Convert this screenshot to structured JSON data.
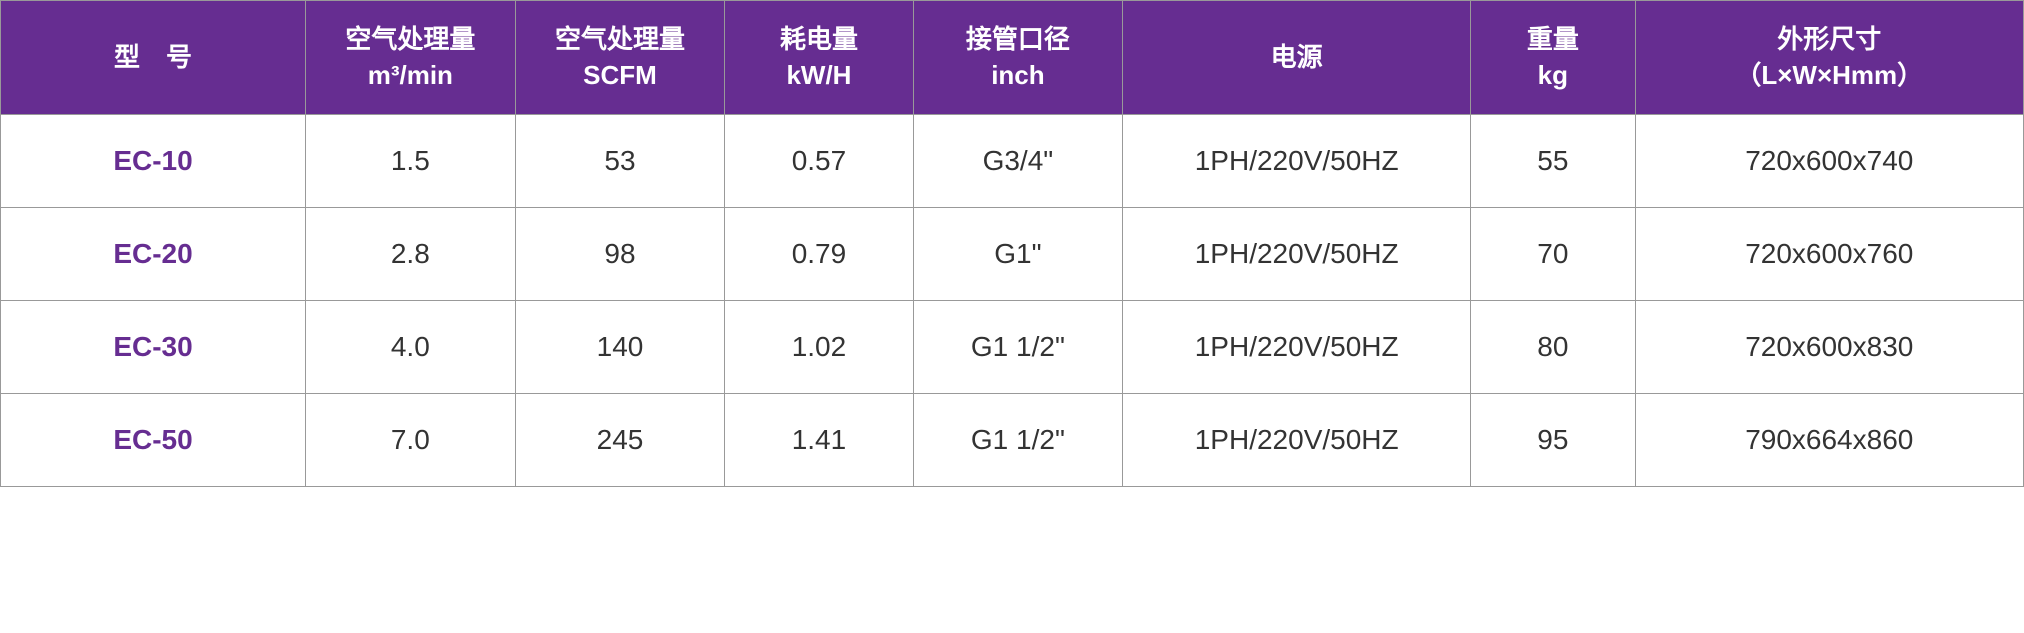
{
  "table": {
    "header_bg": "#662d91",
    "header_fg": "#ffffff",
    "border_color": "#999999",
    "cell_bg": "#ffffff",
    "cell_fg": "#333333",
    "model_fg": "#662d91",
    "header_fontsize": 26,
    "cell_fontsize": 28,
    "columns": [
      {
        "key": "model",
        "label_line1": "型　号",
        "label_line2": "",
        "width_pct": 12.8
      },
      {
        "key": "air_m3",
        "label_line1": "空气处理量",
        "label_line2": "m³/min",
        "width_pct": 8.8
      },
      {
        "key": "air_scfm",
        "label_line1": "空气处理量",
        "label_line2": "SCFM",
        "width_pct": 8.8
      },
      {
        "key": "power_kwh",
        "label_line1": "耗电量",
        "label_line2": "kW/H",
        "width_pct": 7.9
      },
      {
        "key": "pipe",
        "label_line1": "接管口径",
        "label_line2": "inch",
        "width_pct": 8.8
      },
      {
        "key": "elec",
        "label_line1": "电源",
        "label_line2": "",
        "width_pct": 14.6
      },
      {
        "key": "weight",
        "label_line1": "重量",
        "label_line2": "kg",
        "width_pct": 6.9
      },
      {
        "key": "dim",
        "label_line1": "外形尺寸",
        "label_line2": "（L×W×Hmm）",
        "width_pct": 16.3
      }
    ],
    "rows": [
      {
        "model": "EC-10",
        "air_m3": "1.5",
        "air_scfm": "53",
        "power_kwh": "0.57",
        "pipe": "G3/4\"",
        "elec": "1PH/220V/50HZ",
        "weight": "55",
        "dim": "720x600x740"
      },
      {
        "model": "EC-20",
        "air_m3": "2.8",
        "air_scfm": "98",
        "power_kwh": "0.79",
        "pipe": "G1\"",
        "elec": "1PH/220V/50HZ",
        "weight": "70",
        "dim": "720x600x760"
      },
      {
        "model": "EC-30",
        "air_m3": "4.0",
        "air_scfm": "140",
        "power_kwh": "1.02",
        "pipe": "G1 1/2\"",
        "elec": "1PH/220V/50HZ",
        "weight": "80",
        "dim": "720x600x830"
      },
      {
        "model": "EC-50",
        "air_m3": "7.0",
        "air_scfm": "245",
        "power_kwh": "1.41",
        "pipe": "G1 1/2\"",
        "elec": "1PH/220V/50HZ",
        "weight": "95",
        "dim": "790x664x860"
      }
    ]
  }
}
